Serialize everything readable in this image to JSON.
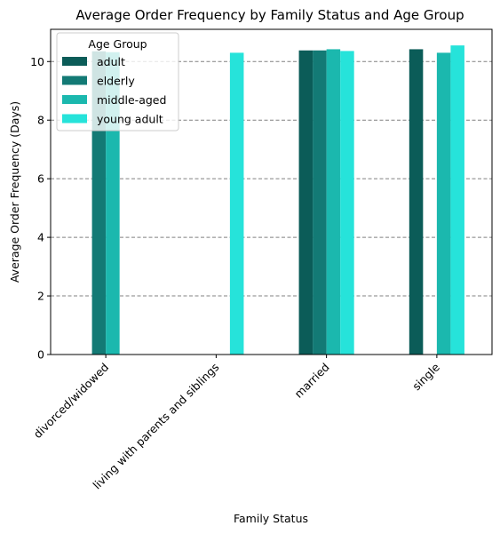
{
  "chart_data": {
    "type": "bar",
    "title": "Average Order Frequency by Family Status and Age Group",
    "xlabel": "Family Status",
    "ylabel": "Average Order Frequency (Days)",
    "categories": [
      "divorced/widowed",
      "living with parents and siblings",
      "married",
      "single"
    ],
    "series": [
      {
        "name": "adult",
        "color": "#0b5c58",
        "values": [
          null,
          null,
          10.38,
          10.42
        ]
      },
      {
        "name": "elderly",
        "color": "#137a75",
        "values": [
          10.35,
          null,
          10.38,
          null
        ]
      },
      {
        "name": "middle-aged",
        "color": "#1bb8ae",
        "values": [
          10.32,
          null,
          10.42,
          10.3
        ]
      },
      {
        "name": "young adult",
        "color": "#26e3da",
        "values": [
          null,
          10.3,
          10.36,
          10.55
        ]
      }
    ],
    "ylim": [
      0,
      11.1
    ],
    "yticks": [
      0,
      2,
      4,
      6,
      8,
      10
    ],
    "grid": "y-dashed",
    "legend": {
      "title": "Age Group",
      "position": "top-left"
    }
  }
}
